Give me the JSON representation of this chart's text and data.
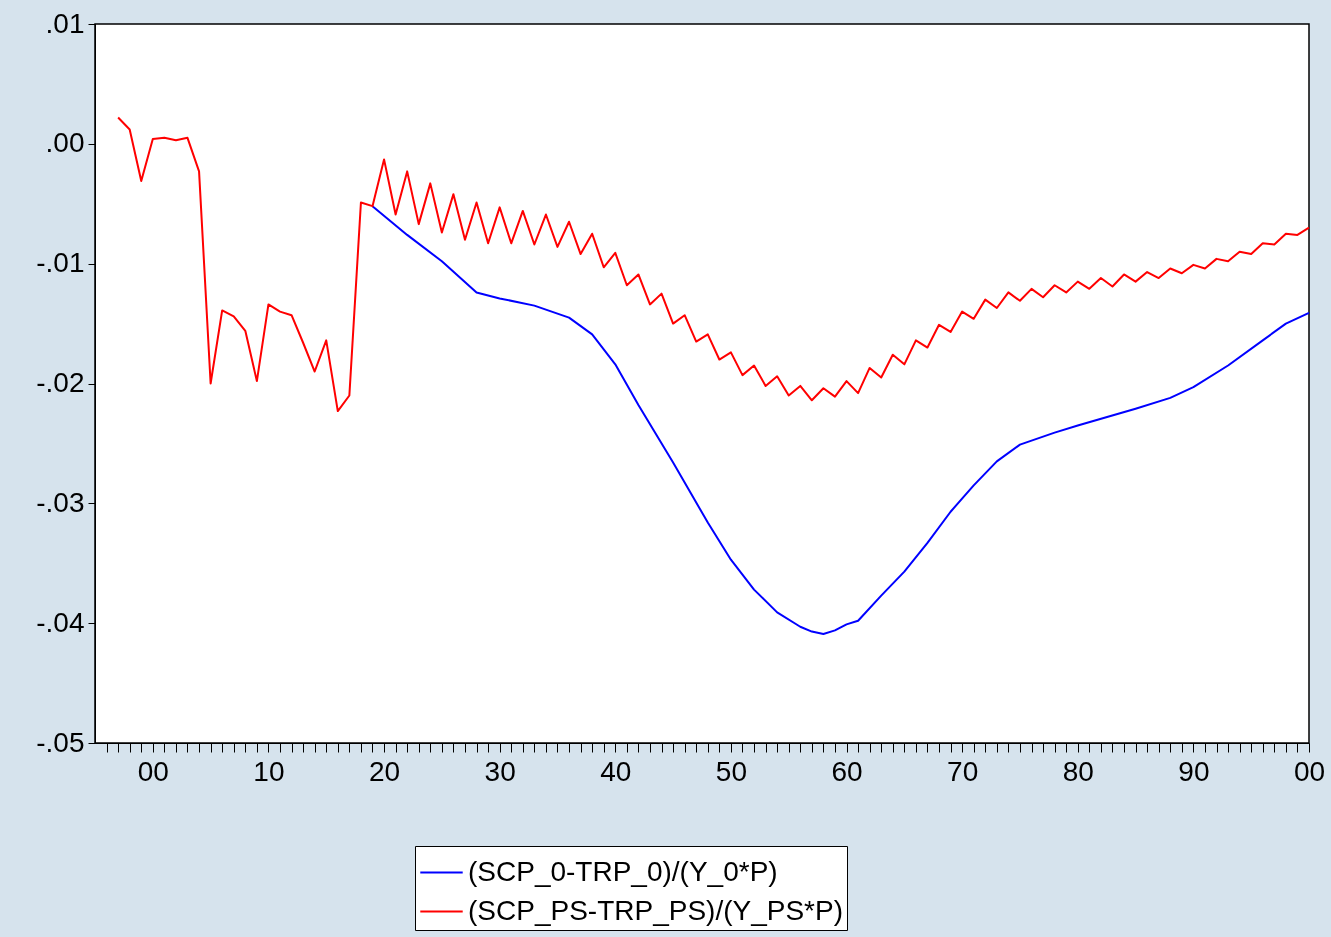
{
  "chart_data": {
    "type": "line",
    "legend": "bottom",
    "grid": false,
    "line_style": "solid",
    "marker": "none",
    "xlim": [
      1995,
      2100
    ],
    "xticks": [
      {
        "value": 1996,
        "label": null
      },
      {
        "value": 1997,
        "label": null
      },
      {
        "value": 1998,
        "label": null
      },
      {
        "value": 1999,
        "label": null
      },
      {
        "value": 2000,
        "label": "00"
      },
      {
        "value": 2001,
        "label": null
      },
      {
        "value": 2002,
        "label": null
      },
      {
        "value": 2003,
        "label": null
      },
      {
        "value": 2004,
        "label": null
      },
      {
        "value": 2005,
        "label": null
      },
      {
        "value": 2006,
        "label": null
      },
      {
        "value": 2007,
        "label": null
      },
      {
        "value": 2008,
        "label": null
      },
      {
        "value": 2009,
        "label": null
      },
      {
        "value": 2010,
        "label": "10"
      },
      {
        "value": 2011,
        "label": null
      },
      {
        "value": 2012,
        "label": null
      },
      {
        "value": 2013,
        "label": null
      },
      {
        "value": 2014,
        "label": null
      },
      {
        "value": 2015,
        "label": null
      },
      {
        "value": 2016,
        "label": null
      },
      {
        "value": 2017,
        "label": null
      },
      {
        "value": 2018,
        "label": null
      },
      {
        "value": 2019,
        "label": null
      },
      {
        "value": 2020,
        "label": "20"
      },
      {
        "value": 2021,
        "label": null
      },
      {
        "value": 2022,
        "label": null
      },
      {
        "value": 2023,
        "label": null
      },
      {
        "value": 2024,
        "label": null
      },
      {
        "value": 2025,
        "label": null
      },
      {
        "value": 2026,
        "label": null
      },
      {
        "value": 2027,
        "label": null
      },
      {
        "value": 2028,
        "label": null
      },
      {
        "value": 2029,
        "label": null
      },
      {
        "value": 2030,
        "label": "30"
      },
      {
        "value": 2031,
        "label": null
      },
      {
        "value": 2032,
        "label": null
      },
      {
        "value": 2033,
        "label": null
      },
      {
        "value": 2034,
        "label": null
      },
      {
        "value": 2035,
        "label": null
      },
      {
        "value": 2036,
        "label": null
      },
      {
        "value": 2037,
        "label": null
      },
      {
        "value": 2038,
        "label": null
      },
      {
        "value": 2039,
        "label": null
      },
      {
        "value": 2040,
        "label": "40"
      },
      {
        "value": 2041,
        "label": null
      },
      {
        "value": 2042,
        "label": null
      },
      {
        "value": 2043,
        "label": null
      },
      {
        "value": 2044,
        "label": null
      },
      {
        "value": 2045,
        "label": null
      },
      {
        "value": 2046,
        "label": null
      },
      {
        "value": 2047,
        "label": null
      },
      {
        "value": 2048,
        "label": null
      },
      {
        "value": 2049,
        "label": null
      },
      {
        "value": 2050,
        "label": "50"
      },
      {
        "value": 2051,
        "label": null
      },
      {
        "value": 2052,
        "label": null
      },
      {
        "value": 2053,
        "label": null
      },
      {
        "value": 2054,
        "label": null
      },
      {
        "value": 2055,
        "label": null
      },
      {
        "value": 2056,
        "label": null
      },
      {
        "value": 2057,
        "label": null
      },
      {
        "value": 2058,
        "label": null
      },
      {
        "value": 2059,
        "label": null
      },
      {
        "value": 2060,
        "label": "60"
      },
      {
        "value": 2061,
        "label": null
      },
      {
        "value": 2062,
        "label": null
      },
      {
        "value": 2063,
        "label": null
      },
      {
        "value": 2064,
        "label": null
      },
      {
        "value": 2065,
        "label": null
      },
      {
        "value": 2066,
        "label": null
      },
      {
        "value": 2067,
        "label": null
      },
      {
        "value": 2068,
        "label": null
      },
      {
        "value": 2069,
        "label": null
      },
      {
        "value": 2070,
        "label": "70"
      },
      {
        "value": 2071,
        "label": null
      },
      {
        "value": 2072,
        "label": null
      },
      {
        "value": 2073,
        "label": null
      },
      {
        "value": 2074,
        "label": null
      },
      {
        "value": 2075,
        "label": null
      },
      {
        "value": 2076,
        "label": null
      },
      {
        "value": 2077,
        "label": null
      },
      {
        "value": 2078,
        "label": null
      },
      {
        "value": 2079,
        "label": null
      },
      {
        "value": 2080,
        "label": "80"
      },
      {
        "value": 2081,
        "label": null
      },
      {
        "value": 2082,
        "label": null
      },
      {
        "value": 2083,
        "label": null
      },
      {
        "value": 2084,
        "label": null
      },
      {
        "value": 2085,
        "label": null
      },
      {
        "value": 2086,
        "label": null
      },
      {
        "value": 2087,
        "label": null
      },
      {
        "value": 2088,
        "label": null
      },
      {
        "value": 2089,
        "label": null
      },
      {
        "value": 2090,
        "label": "90"
      },
      {
        "value": 2091,
        "label": null
      },
      {
        "value": 2092,
        "label": null
      },
      {
        "value": 2093,
        "label": null
      },
      {
        "value": 2094,
        "label": null
      },
      {
        "value": 2095,
        "label": null
      },
      {
        "value": 2096,
        "label": null
      },
      {
        "value": 2097,
        "label": null
      },
      {
        "value": 2098,
        "label": null
      },
      {
        "value": 2099,
        "label": null
      },
      {
        "value": 2100,
        "label": "00"
      }
    ],
    "ylim": [
      -0.05,
      0.01
    ],
    "yticks": [
      {
        "value": 0.01,
        "label": ".01"
      },
      {
        "value": 0,
        "label": ".00"
      },
      {
        "value": -0.01,
        "label": "-.01"
      },
      {
        "value": -0.02,
        "label": "-.02"
      },
      {
        "value": -0.03,
        "label": "-.03"
      },
      {
        "value": -0.04,
        "label": "-.04"
      },
      {
        "value": -0.05,
        "label": "-.05"
      }
    ],
    "series": [
      {
        "name": "(SCP_0-TRP_0)/(Y_0*P)",
        "color": "#0000ff",
        "x": [
          2019,
          2022,
          2025,
          2028,
          2030,
          2033,
          2036,
          2038,
          2040,
          2042,
          2045,
          2048,
          2050,
          2052,
          2054,
          2056,
          2057,
          2058,
          2059,
          2060,
          2061,
          2063,
          2065,
          2067,
          2069,
          2071,
          2073,
          2075,
          2078,
          2080,
          2085,
          2088,
          2090,
          2093,
          2096,
          2098,
          2100
        ],
        "values": [
          -0.0052,
          -0.0076,
          -0.0098,
          -0.0124,
          -0.0129,
          -0.0135,
          -0.0145,
          -0.0159,
          -0.0184,
          -0.0218,
          -0.0266,
          -0.0316,
          -0.0347,
          -0.0372,
          -0.0391,
          -0.0403,
          -0.0407,
          -0.0409,
          -0.0406,
          -0.0401,
          -0.0398,
          -0.0377,
          -0.0357,
          -0.0333,
          -0.0307,
          -0.0285,
          -0.0265,
          -0.0251,
          -0.0241,
          -0.0235,
          -0.0221,
          -0.0212,
          -0.0203,
          -0.0185,
          -0.0164,
          -0.015,
          -0.0141
        ]
      },
      {
        "name": "(SCP_PS-TRP_PS)/(Y_PS*P)",
        "color": "#ff0000",
        "x": [
          1997,
          1998,
          1999,
          2000,
          2001,
          2002,
          2003,
          2004,
          2005,
          2006,
          2007,
          2008,
          2009,
          2010,
          2011,
          2012,
          2013,
          2014,
          2015,
          2016,
          2017,
          2018,
          2019,
          2020,
          2021,
          2022,
          2023,
          2024,
          2025,
          2026,
          2027,
          2028,
          2029,
          2030,
          2031,
          2032,
          2033,
          2034,
          2035,
          2036,
          2037,
          2038,
          2039,
          2040,
          2041,
          2042,
          2043,
          2044,
          2045,
          2046,
          2047,
          2048,
          2049,
          2050,
          2051,
          2052,
          2053,
          2054,
          2055,
          2056,
          2057,
          2058,
          2059,
          2060,
          2061,
          2062,
          2063,
          2064,
          2065,
          2066,
          2067,
          2068,
          2069,
          2070,
          2071,
          2072,
          2073,
          2074,
          2075,
          2076,
          2077,
          2078,
          2079,
          2080,
          2081,
          2082,
          2083,
          2084,
          2085,
          2086,
          2087,
          2088,
          2089,
          2090,
          2091,
          2092,
          2093,
          2094,
          2095,
          2096,
          2097,
          2098,
          2099,
          2100
        ],
        "values": [
          0.0022,
          0.0012,
          -0.0031,
          0.0004,
          0.0005,
          0.0003,
          0.0005,
          -0.0023,
          -0.02,
          -0.0139,
          -0.0144,
          -0.0156,
          -0.0198,
          -0.0134,
          -0.014,
          -0.0143,
          -0.0166,
          -0.019,
          -0.0164,
          -0.0223,
          -0.021,
          -0.0049,
          -0.0052,
          -0.0013,
          -0.0059,
          -0.0023,
          -0.0067,
          -0.0033,
          -0.0074,
          -0.0042,
          -0.008,
          -0.0049,
          -0.0083,
          -0.0053,
          -0.0083,
          -0.0056,
          -0.0084,
          -0.0059,
          -0.0086,
          -0.0065,
          -0.0092,
          -0.0075,
          -0.0103,
          -0.0091,
          -0.0118,
          -0.0109,
          -0.0134,
          -0.0125,
          -0.015,
          -0.0143,
          -0.0165,
          -0.0159,
          -0.018,
          -0.0174,
          -0.0193,
          -0.0185,
          -0.0202,
          -0.0194,
          -0.021,
          -0.0202,
          -0.0214,
          -0.0204,
          -0.0211,
          -0.0198,
          -0.0208,
          -0.0187,
          -0.0195,
          -0.0176,
          -0.0184,
          -0.0164,
          -0.017,
          -0.0151,
          -0.0157,
          -0.014,
          -0.0146,
          -0.013,
          -0.0137,
          -0.0124,
          -0.0131,
          -0.0121,
          -0.0128,
          -0.0118,
          -0.0124,
          -0.0115,
          -0.0121,
          -0.0112,
          -0.0119,
          -0.0109,
          -0.0115,
          -0.0107,
          -0.0112,
          -0.0104,
          -0.0108,
          -0.0101,
          -0.0104,
          -0.0096,
          -0.0098,
          -0.009,
          -0.0092,
          -0.0083,
          -0.0084,
          -0.0075,
          -0.0076,
          -0.007
        ]
      }
    ]
  }
}
